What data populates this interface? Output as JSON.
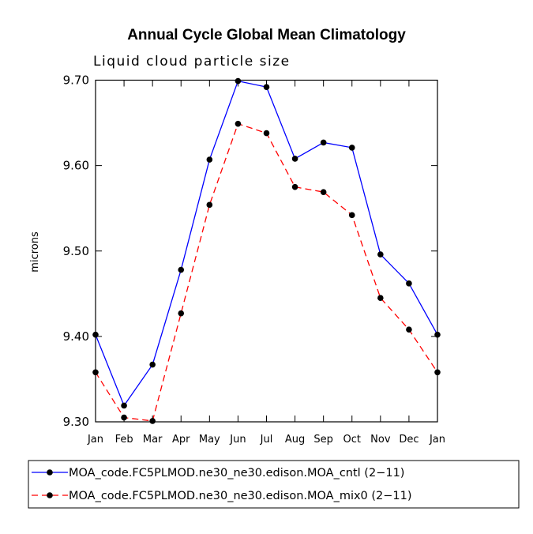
{
  "chart_data": {
    "type": "line",
    "title": "Annual Cycle Global Mean Climatology",
    "subtitle": "Liquid cloud particle size",
    "xlabel": "",
    "ylabel": "microns",
    "categories": [
      "Jan",
      "Feb",
      "Mar",
      "Apr",
      "May",
      "Jun",
      "Jul",
      "Aug",
      "Sep",
      "Oct",
      "Nov",
      "Dec",
      "Jan"
    ],
    "ylim": [
      9.3,
      9.7
    ],
    "yticks": [
      9.3,
      9.4,
      9.5,
      9.6,
      9.7
    ],
    "ytick_labels": [
      "9.30",
      "9.40",
      "9.50",
      "9.60",
      "9.70"
    ],
    "grid": false,
    "legend_position": "bottom",
    "series": [
      {
        "name": "MOA_code.FC5PLMOD.ne30_ne30.edison.MOA_cntl (2-11)",
        "legend_label": "MOA_code.FC5PLMOD.ne30_ne30.edison.MOA_cntl (2−11)",
        "color": "#0000ff",
        "dash": "solid",
        "marker": "circle",
        "values": [
          9.402,
          9.319,
          9.367,
          9.478,
          9.607,
          9.699,
          9.692,
          9.608,
          9.627,
          9.621,
          9.496,
          9.462,
          9.402
        ]
      },
      {
        "name": "MOA_code.FC5PLMOD.ne30_ne30.edison.MOA_mix0 (2-11)",
        "legend_label": "MOA_code.FC5PLMOD.ne30_ne30.edison.MOA_mix0 (2−11)",
        "color": "#ff0000",
        "dash": "dashed",
        "marker": "circle",
        "values": [
          9.358,
          9.305,
          9.301,
          9.427,
          9.554,
          9.649,
          9.638,
          9.575,
          9.569,
          9.542,
          9.445,
          9.408,
          9.358
        ]
      }
    ]
  }
}
